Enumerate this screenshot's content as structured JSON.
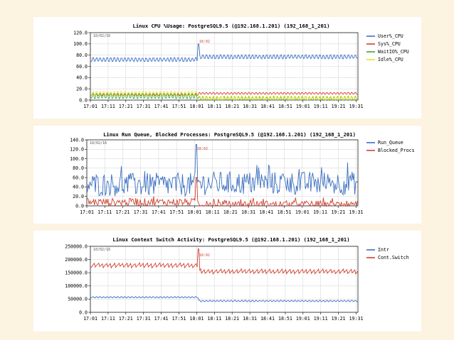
{
  "colors": {
    "background": "#fdf3e1",
    "panel": "#ffffff",
    "grid": "#d9d9d9"
  },
  "chart_data": [
    {
      "type": "line",
      "title": "Linux CPU %Usage: PostgreSQL9.5 (@192.168.1.201) (192_168_1_201)",
      "date_label": "10/02/16",
      "marker_label": "18:02",
      "x_ticks": [
        "17:01",
        "17:11",
        "17:21",
        "17:31",
        "17:41",
        "17:51",
        "18:01",
        "18:11",
        "18:21",
        "18:31",
        "18:41",
        "18:51",
        "19:01",
        "19:11",
        "19:21",
        "19:31"
      ],
      "x_range": [
        "17:01",
        "19:32"
      ],
      "y_ticks": [
        "0.0",
        "20.0",
        "40.0",
        "60.0",
        "80.0",
        "100.0",
        "120.0"
      ],
      "ylim": [
        0,
        120
      ],
      "grid": true,
      "legend_position": "right",
      "series": [
        {
          "name": "User%_CPU",
          "color": "#3a6fc2",
          "before": 72,
          "after": 77,
          "amp": 4,
          "period": 2,
          "spike": 100
        },
        {
          "name": "Sys%_CPU",
          "color": "#d0402f",
          "before": 10,
          "after": 12,
          "amp": 2,
          "period": 2
        },
        {
          "name": "WaitIO%_CPU",
          "color": "#3fa336",
          "before": 7,
          "after": 2,
          "amp": 5,
          "period": 2
        },
        {
          "name": "Idle%_CPU",
          "color": "#e6e02a",
          "before": 12,
          "after": 4,
          "amp": 4,
          "period": 2
        }
      ]
    },
    {
      "type": "line",
      "title": "Linux Run Queue, Blocked Processes: PostgreSQL9.5 (@192.168.1.201) (192_168_1_201)",
      "date_label": "10/02/16",
      "marker_label": "18:02",
      "x_ticks": [
        "17:01",
        "17:11",
        "17:21",
        "17:31",
        "17:41",
        "17:51",
        "18:01",
        "18:11",
        "18:21",
        "18:31",
        "18:41",
        "18:51",
        "19:01",
        "19:11",
        "19:21",
        "19:31"
      ],
      "x_range": [
        "17:01",
        "19:32"
      ],
      "y_ticks": [
        "0.0",
        "20.0",
        "40.0",
        "60.0",
        "80.0",
        "100.0",
        "120.0",
        "140.0"
      ],
      "ylim": [
        0,
        140
      ],
      "grid": true,
      "legend_position": "right",
      "series": [
        {
          "name": "Run_Queue",
          "color": "#3a6fc2",
          "before": 45,
          "after": 48,
          "amp": 25,
          "noisy": true,
          "spike": 130
        },
        {
          "name": "Blocked_Procs",
          "color": "#d0402f",
          "before": 8,
          "after": 3,
          "amp": 8,
          "noisy": true,
          "spike": 60
        }
      ]
    },
    {
      "type": "line",
      "title": "Linux Context Switch Activity: PostgreSQL9.5 (@192.168.1.201) (192_168_1_201)",
      "date_label": "10/02/16",
      "marker_label": "18:02",
      "x_ticks": [
        "17:01",
        "17:11",
        "17:21",
        "17:31",
        "17:41",
        "17:51",
        "18:01",
        "18:11",
        "18:21",
        "18:31",
        "18:41",
        "18:51",
        "19:01",
        "19:11",
        "19:21",
        "19:31"
      ],
      "x_range": [
        "17:01",
        "19:32"
      ],
      "y_ticks": [
        "0.0",
        "50000.0",
        "100000.0",
        "150000.0",
        "200000.0",
        "250000.0"
      ],
      "ylim": [
        0,
        250000
      ],
      "grid": true,
      "legend_position": "right",
      "series": [
        {
          "name": "Intr",
          "color": "#3a6fc2",
          "before": 57000,
          "after": 43000,
          "amp": 3000,
          "period": 2
        },
        {
          "name": "Cont.Switch",
          "color": "#d0402f",
          "before": 178000,
          "after": 155000,
          "amp": 9000,
          "period": 2.3,
          "saw": true,
          "spike": 240000
        }
      ]
    }
  ]
}
